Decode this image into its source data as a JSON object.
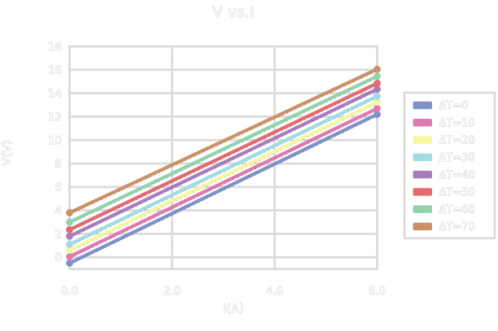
{
  "chart_data": {
    "type": "line",
    "title": "V vs.I",
    "xlabel": "I(A)",
    "ylabel": "V(V)",
    "x_ticks": [
      "0.0",
      "2.0",
      "4.0",
      "6.0"
    ],
    "x_tick_values": [
      0,
      2,
      4,
      6
    ],
    "y_ticks": [
      "18",
      "16",
      "14",
      "12",
      "10",
      "8",
      "6",
      "4",
      "2",
      "0"
    ],
    "y_tick_values": [
      18,
      16,
      14,
      12,
      10,
      8,
      6,
      4,
      2,
      0
    ],
    "xlim": [
      0,
      6
    ],
    "ylim": [
      -1,
      18
    ],
    "grid": "on",
    "legend_position": "right",
    "series": [
      {
        "name": "ΔT=0",
        "color": "#7e92c8",
        "x": [
          0,
          6
        ],
        "y": [
          -0.5,
          12.2
        ]
      },
      {
        "name": "ΔT=10",
        "color": "#de7ab0",
        "x": [
          0,
          6
        ],
        "y": [
          0.05,
          12.7
        ]
      },
      {
        "name": "ΔT=20",
        "color": "#f7f6a2",
        "x": [
          0,
          6
        ],
        "y": [
          0.6,
          13.25
        ]
      },
      {
        "name": "ΔT=30",
        "color": "#a2dbe1",
        "x": [
          0,
          6
        ],
        "y": [
          1.1,
          13.75
        ]
      },
      {
        "name": "ΔT=40",
        "color": "#a87cbd",
        "x": [
          0,
          6
        ],
        "y": [
          1.8,
          14.35
        ]
      },
      {
        "name": "ΔT=50",
        "color": "#e56a6f",
        "x": [
          0,
          6
        ],
        "y": [
          2.35,
          14.85
        ]
      },
      {
        "name": "ΔT=60",
        "color": "#92d3ab",
        "x": [
          0,
          6
        ],
        "y": [
          3.0,
          15.45
        ]
      },
      {
        "name": "ΔT=70",
        "color": "#cb9268",
        "x": [
          0,
          6
        ],
        "y": [
          3.8,
          16.05
        ]
      }
    ],
    "style": {
      "grid_color": "#dcdcdc",
      "frame_color": "#dcdcdc",
      "text_color": "#c3c3c3",
      "marker": "circle-endpoints",
      "fit_line": "black-dashed-under-series",
      "fit_line_color": "#222222",
      "legend_border_color": "#d9d9d9",
      "background": "#ffffff"
    }
  }
}
